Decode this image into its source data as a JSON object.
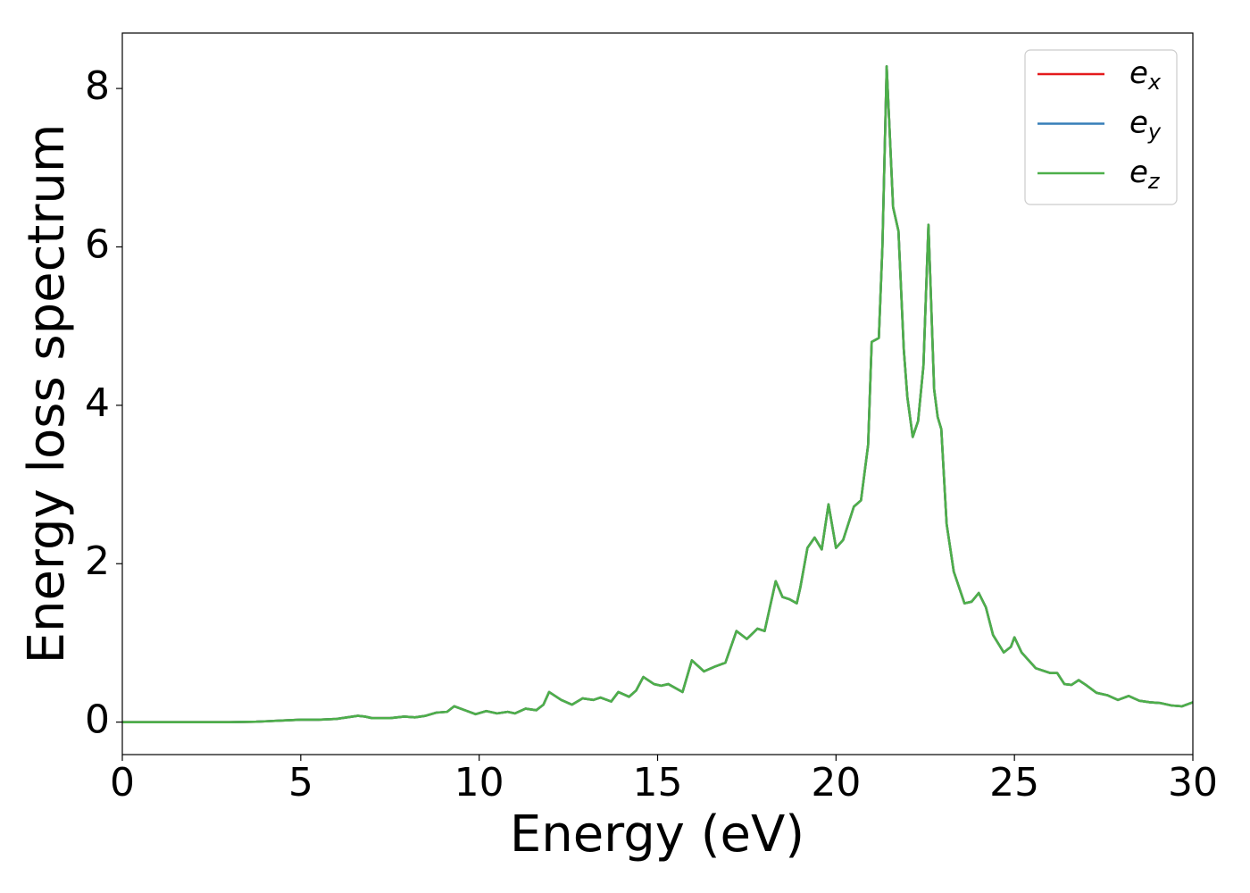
{
  "chart_data": {
    "type": "line",
    "xlabel": "Energy (eV)",
    "ylabel": "Energy loss spectrum",
    "x": [
      0,
      1,
      2,
      3,
      3.75,
      4,
      4.5,
      5,
      5.5,
      6,
      6.3,
      6.6,
      6.8,
      7,
      7.5,
      7.9,
      8.2,
      8.5,
      8.8,
      9.1,
      9.3,
      9.6,
      9.9,
      10.2,
      10.5,
      10.8,
      11,
      11.3,
      11.6,
      11.8,
      11.96,
      12.3,
      12.6,
      12.9,
      13.2,
      13.4,
      13.7,
      13.9,
      14.2,
      14.4,
      14.6,
      14.9,
      15.1,
      15.3,
      15.7,
      15.96,
      16.3,
      16.6,
      16.9,
      17.21,
      17.5,
      17.8,
      18,
      18.31,
      18.5,
      18.7,
      18.9,
      19,
      19.2,
      19.4,
      19.6,
      19.79,
      20,
      20.2,
      20.5,
      20.7,
      20.9,
      21,
      21.2,
      21.3,
      21.42,
      21.6,
      21.75,
      21.9,
      22,
      22.15,
      22.3,
      22.45,
      22.59,
      22.75,
      22.85,
      22.95,
      23.1,
      23.3,
      23.6,
      23.8,
      24,
      24.2,
      24.4,
      24.7,
      24.9,
      25,
      25.2,
      25.4,
      25.6,
      25.8,
      26,
      26.2,
      26.4,
      26.6,
      26.8,
      27,
      27.3,
      27.6,
      27.9,
      28.2,
      28.5,
      28.8,
      29.1,
      29.4,
      29.7,
      30
    ],
    "series": [
      {
        "name": "e_x",
        "color": "#e41a1c",
        "values": [
          0,
          0,
          0,
          0,
          0.005,
          0.01,
          0.02,
          0.03,
          0.03,
          0.04,
          0.06,
          0.08,
          0.07,
          0.05,
          0.05,
          0.07,
          0.06,
          0.08,
          0.12,
          0.13,
          0.2,
          0.15,
          0.1,
          0.14,
          0.11,
          0.13,
          0.11,
          0.17,
          0.15,
          0.22,
          0.38,
          0.28,
          0.22,
          0.3,
          0.28,
          0.31,
          0.26,
          0.38,
          0.32,
          0.4,
          0.57,
          0.48,
          0.46,
          0.48,
          0.38,
          0.78,
          0.64,
          0.7,
          0.75,
          1.15,
          1.05,
          1.18,
          1.15,
          1.78,
          1.58,
          1.55,
          1.5,
          1.7,
          2.2,
          2.33,
          2.18,
          2.75,
          2.2,
          2.3,
          2.72,
          2.8,
          3.5,
          4.8,
          4.85,
          6.0,
          8.28,
          6.5,
          6.2,
          4.7,
          4.1,
          3.6,
          3.8,
          4.5,
          6.28,
          4.2,
          3.85,
          3.7,
          2.5,
          1.9,
          1.5,
          1.52,
          1.63,
          1.45,
          1.1,
          0.88,
          0.95,
          1.07,
          0.88,
          0.78,
          0.68,
          0.65,
          0.62,
          0.62,
          0.48,
          0.47,
          0.53,
          0.47,
          0.37,
          0.34,
          0.28,
          0.33,
          0.27,
          0.25,
          0.24,
          0.21,
          0.2,
          0.25
        ]
      },
      {
        "name": "e_y",
        "color": "#377eb8",
        "values": [
          0,
          0,
          0,
          0,
          0.005,
          0.01,
          0.02,
          0.03,
          0.03,
          0.04,
          0.06,
          0.08,
          0.07,
          0.05,
          0.05,
          0.07,
          0.06,
          0.08,
          0.12,
          0.13,
          0.2,
          0.15,
          0.1,
          0.14,
          0.11,
          0.13,
          0.11,
          0.17,
          0.15,
          0.22,
          0.38,
          0.28,
          0.22,
          0.3,
          0.28,
          0.31,
          0.26,
          0.38,
          0.32,
          0.4,
          0.57,
          0.48,
          0.46,
          0.48,
          0.38,
          0.78,
          0.64,
          0.7,
          0.75,
          1.15,
          1.05,
          1.18,
          1.15,
          1.78,
          1.58,
          1.55,
          1.5,
          1.7,
          2.2,
          2.33,
          2.18,
          2.75,
          2.2,
          2.3,
          2.72,
          2.8,
          3.5,
          4.8,
          4.85,
          6.0,
          8.28,
          6.5,
          6.2,
          4.7,
          4.1,
          3.6,
          3.8,
          4.5,
          6.28,
          4.2,
          3.85,
          3.7,
          2.5,
          1.9,
          1.5,
          1.52,
          1.63,
          1.45,
          1.1,
          0.88,
          0.95,
          1.07,
          0.88,
          0.78,
          0.68,
          0.65,
          0.62,
          0.62,
          0.48,
          0.47,
          0.53,
          0.47,
          0.37,
          0.34,
          0.28,
          0.33,
          0.27,
          0.25,
          0.24,
          0.21,
          0.2,
          0.25
        ]
      },
      {
        "name": "e_z",
        "color": "#4daf4a",
        "values": [
          0,
          0,
          0,
          0,
          0.005,
          0.01,
          0.02,
          0.03,
          0.03,
          0.04,
          0.06,
          0.08,
          0.07,
          0.05,
          0.05,
          0.07,
          0.06,
          0.08,
          0.12,
          0.13,
          0.2,
          0.15,
          0.1,
          0.14,
          0.11,
          0.13,
          0.11,
          0.17,
          0.15,
          0.22,
          0.38,
          0.28,
          0.22,
          0.3,
          0.28,
          0.31,
          0.26,
          0.38,
          0.32,
          0.4,
          0.57,
          0.48,
          0.46,
          0.48,
          0.38,
          0.78,
          0.64,
          0.7,
          0.75,
          1.15,
          1.05,
          1.18,
          1.15,
          1.78,
          1.58,
          1.55,
          1.5,
          1.7,
          2.2,
          2.33,
          2.18,
          2.75,
          2.2,
          2.3,
          2.72,
          2.8,
          3.5,
          4.8,
          4.85,
          6.0,
          8.28,
          6.5,
          6.2,
          4.7,
          4.1,
          3.6,
          3.8,
          4.5,
          6.28,
          4.2,
          3.85,
          3.7,
          2.5,
          1.9,
          1.5,
          1.52,
          1.63,
          1.45,
          1.1,
          0.88,
          0.95,
          1.07,
          0.88,
          0.78,
          0.68,
          0.65,
          0.62,
          0.62,
          0.48,
          0.47,
          0.53,
          0.47,
          0.37,
          0.34,
          0.28,
          0.33,
          0.27,
          0.25,
          0.24,
          0.21,
          0.2,
          0.25
        ]
      }
    ],
    "xlim": [
      0,
      30
    ],
    "xticks": [
      0,
      5,
      10,
      15,
      20,
      25,
      30
    ],
    "ylim": [
      -0.41,
      8.7
    ],
    "yticks": [
      0,
      2,
      4,
      6,
      8
    ],
    "legend": "upper right"
  }
}
